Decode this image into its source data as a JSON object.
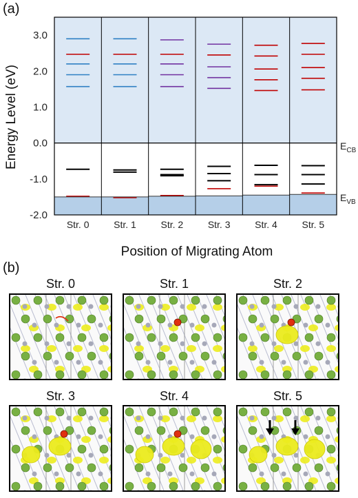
{
  "panel_a_label": "(a)",
  "panel_b_label": "(b)",
  "colors": {
    "cb_fill": "#dce8f5",
    "vb_fill": "#b5cfe8",
    "blue": "#2e7fc4",
    "red": "#c00000",
    "purple": "#7030a0",
    "black": "#000000",
    "atom_green": "#78b043",
    "atom_grey": "#a6a8b8",
    "isosurface": "#ecec1e",
    "migrating_atom": "#e03010"
  },
  "chart_data": {
    "type": "energy-level diagram",
    "ylabel": "Energy Level (eV)",
    "xlabel": "Position of Migrating Atom",
    "ylim": [
      -2.0,
      3.5
    ],
    "yticks": [
      "3.0",
      "2.0",
      "1.0",
      "0.0",
      "-1.0",
      "-2.0"
    ],
    "ytick_values": [
      3.0,
      2.0,
      1.0,
      0.0,
      -1.0,
      -2.0
    ],
    "cbm": 0.0,
    "cbm_label_main": "E",
    "cbm_label_sub": "CB",
    "vbm_label_main": "E",
    "vbm_label_sub": "VB",
    "categories": [
      "Str. 0",
      "Str. 1",
      "Str. 2",
      "Str. 3",
      "Str. 4",
      "Str. 5"
    ],
    "columns": [
      {
        "vbm": -1.5,
        "levels": [
          {
            "e": 2.9,
            "color": "blue"
          },
          {
            "e": 2.47,
            "color": "red"
          },
          {
            "e": 2.2,
            "color": "blue"
          },
          {
            "e": 1.9,
            "color": "blue"
          },
          {
            "e": 1.57,
            "color": "blue"
          },
          {
            "e": -0.73,
            "color": "black"
          },
          {
            "e": -1.48,
            "color": "red"
          }
        ]
      },
      {
        "vbm": -1.5,
        "levels": [
          {
            "e": 2.9,
            "color": "blue"
          },
          {
            "e": 2.47,
            "color": "red"
          },
          {
            "e": 2.2,
            "color": "blue"
          },
          {
            "e": 1.9,
            "color": "blue"
          },
          {
            "e": 1.57,
            "color": "blue"
          },
          {
            "e": -0.75,
            "color": "black"
          },
          {
            "e": -0.81,
            "color": "black"
          },
          {
            "e": -1.52,
            "color": "red"
          }
        ]
      },
      {
        "vbm": -1.48,
        "levels": [
          {
            "e": 2.87,
            "color": "purple"
          },
          {
            "e": 2.47,
            "color": "red"
          },
          {
            "e": 2.2,
            "color": "purple"
          },
          {
            "e": 1.9,
            "color": "purple"
          },
          {
            "e": 1.57,
            "color": "purple"
          },
          {
            "e": -0.73,
            "color": "black"
          },
          {
            "e": -0.88,
            "color": "black"
          },
          {
            "e": -0.91,
            "color": "black"
          },
          {
            "e": -1.46,
            "color": "red"
          }
        ]
      },
      {
        "vbm": -1.47,
        "levels": [
          {
            "e": 2.75,
            "color": "purple"
          },
          {
            "e": 2.45,
            "color": "red"
          },
          {
            "e": 2.12,
            "color": "purple"
          },
          {
            "e": 1.82,
            "color": "purple"
          },
          {
            "e": 1.52,
            "color": "purple"
          },
          {
            "e": -0.65,
            "color": "black"
          },
          {
            "e": -0.85,
            "color": "black"
          },
          {
            "e": -1.05,
            "color": "black"
          },
          {
            "e": -1.27,
            "color": "red"
          }
        ]
      },
      {
        "vbm": -1.45,
        "levels": [
          {
            "e": 2.72,
            "color": "red"
          },
          {
            "e": 2.42,
            "color": "red"
          },
          {
            "e": 2.06,
            "color": "red"
          },
          {
            "e": 1.76,
            "color": "red"
          },
          {
            "e": 1.46,
            "color": "red"
          },
          {
            "e": -0.62,
            "color": "black"
          },
          {
            "e": -0.88,
            "color": "black"
          },
          {
            "e": -1.16,
            "color": "black"
          },
          {
            "e": -1.2,
            "color": "red"
          }
        ]
      },
      {
        "vbm": -1.43,
        "levels": [
          {
            "e": 2.77,
            "color": "red"
          },
          {
            "e": 2.47,
            "color": "red"
          },
          {
            "e": 2.1,
            "color": "red"
          },
          {
            "e": 1.8,
            "color": "red"
          },
          {
            "e": 1.48,
            "color": "red"
          },
          {
            "e": -0.63,
            "color": "black"
          },
          {
            "e": -0.88,
            "color": "black"
          },
          {
            "e": -1.14,
            "color": "black"
          },
          {
            "e": -1.39,
            "color": "red"
          }
        ]
      }
    ]
  },
  "structures": [
    {
      "title": "Str. 0",
      "blobs": 0,
      "marker": "line",
      "arrows": false
    },
    {
      "title": "Str. 1",
      "blobs": 0,
      "marker": "dot",
      "arrows": false
    },
    {
      "title": "Str. 2",
      "blobs": 1,
      "marker": "dot",
      "arrows": false
    },
    {
      "title": "Str. 3",
      "blobs": 2,
      "marker": "dot",
      "arrows": false
    },
    {
      "title": "Str. 4",
      "blobs": 3,
      "marker": "dot",
      "arrows": false
    },
    {
      "title": "Str. 5",
      "blobs": 3,
      "marker": "none",
      "arrows": true
    }
  ]
}
